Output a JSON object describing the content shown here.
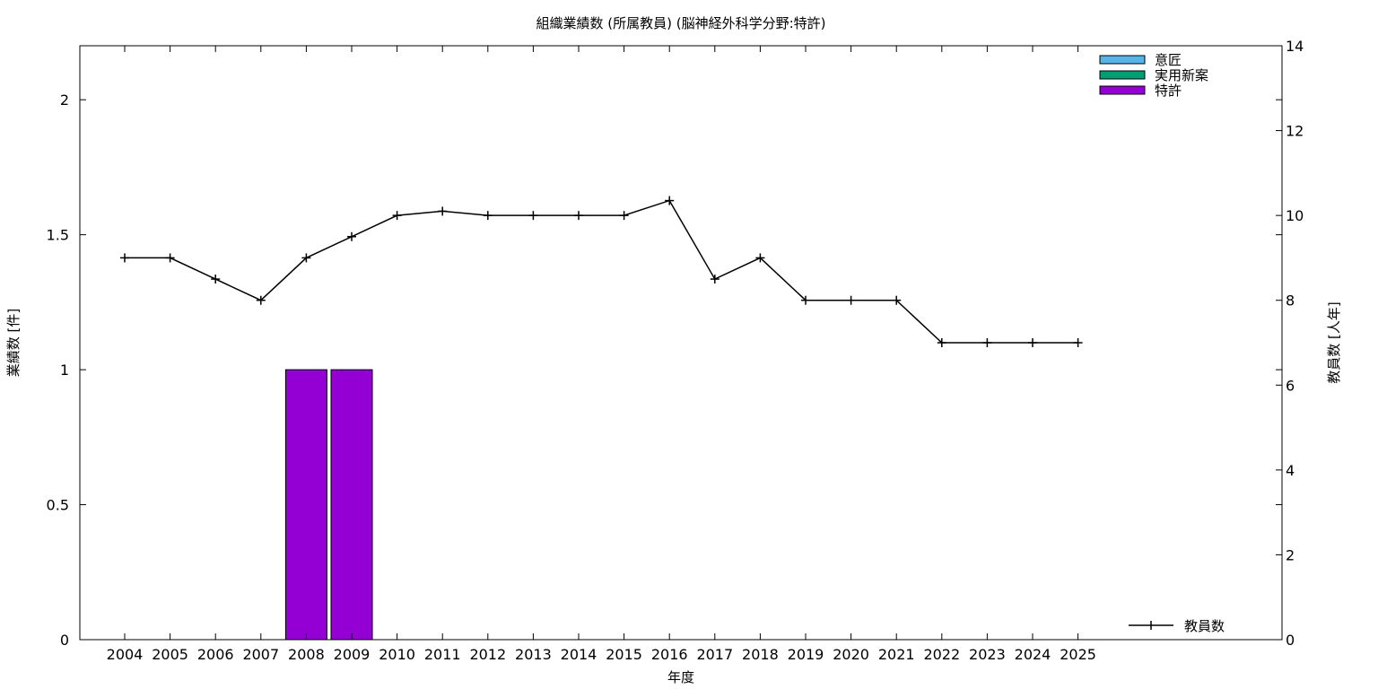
{
  "chart_data": {
    "type": "bar",
    "title": "組織業績数 (所属教員) (脳神経外科学分野:特許)",
    "xlabel": "年度",
    "ylabel": "業績数 [件]",
    "y2label": "教員数 [人年]",
    "categories": [
      "2004",
      "2005",
      "2006",
      "2007",
      "2008",
      "2009",
      "2010",
      "2011",
      "2012",
      "2013",
      "2014",
      "2015",
      "2016",
      "2017",
      "2018",
      "2019",
      "2020",
      "2021",
      "2022",
      "2023",
      "2024",
      "2025"
    ],
    "ylim": [
      0,
      2.2
    ],
    "yticks": [
      "0",
      "0.5",
      "1",
      "1.5",
      "2"
    ],
    "y2lim": [
      0,
      14
    ],
    "y2ticks": [
      "0",
      "2",
      "4",
      "6",
      "8",
      "10",
      "12",
      "14"
    ],
    "grid": false,
    "legend_position": "top-right",
    "line_legend_position": "bottom-right",
    "series": [
      {
        "name": "意匠",
        "color": "#56b4e9",
        "values": [
          0,
          0,
          0,
          0,
          0,
          0,
          0,
          0,
          0,
          0,
          0,
          0,
          0,
          0,
          0,
          0,
          0,
          0,
          0,
          0,
          0,
          0
        ]
      },
      {
        "name": "実用新案",
        "color": "#009e73",
        "values": [
          0,
          0,
          0,
          0,
          0,
          0,
          0,
          0,
          0,
          0,
          0,
          0,
          0,
          0,
          0,
          0,
          0,
          0,
          0,
          0,
          0,
          0
        ]
      },
      {
        "name": "特許",
        "color": "#9400d3",
        "values": [
          0,
          0,
          0,
          0,
          1,
          1,
          0,
          0,
          0,
          0,
          0,
          0,
          0,
          0,
          0,
          0,
          0,
          0,
          0,
          0,
          0,
          0
        ]
      }
    ],
    "line_series": {
      "name": "教員数",
      "axis": "y2",
      "color": "#000000",
      "values": [
        9,
        9,
        8.5,
        8,
        9,
        9.5,
        10,
        10.1,
        10,
        10,
        10,
        10,
        10.35,
        8.5,
        9,
        8,
        8,
        8,
        7,
        7,
        7,
        7
      ]
    }
  }
}
